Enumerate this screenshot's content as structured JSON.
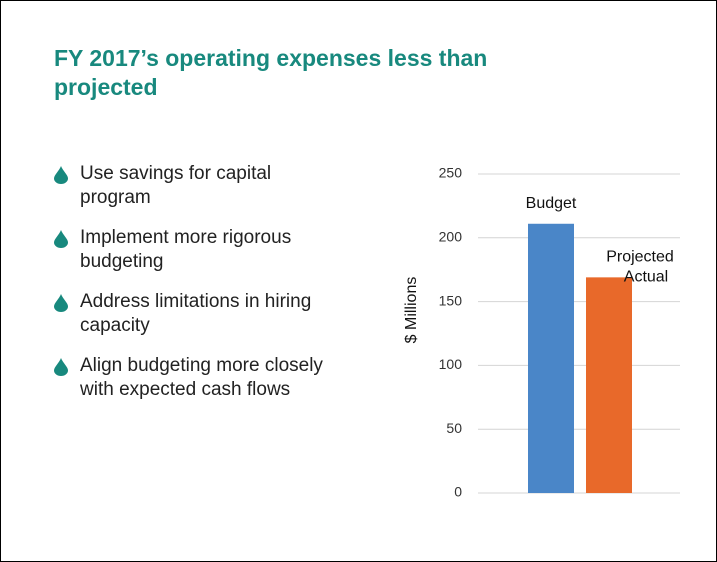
{
  "title": "FY 2017’s operating expenses less than projected",
  "bullets": [
    "Use savings for capital program",
    "Implement more rigorous budgeting",
    "Address limitations in hiring capacity",
    "Align budgeting more closely with expected cash flows"
  ],
  "chart_data": {
    "type": "bar",
    "y_label": "$ Millions",
    "categories": [
      "Budget",
      "Projected Actual"
    ],
    "values": [
      211,
      169
    ],
    "colors": [
      "#4a86c8",
      "#e8692a"
    ],
    "ylim": [
      0,
      250
    ],
    "yticks": [
      0,
      50,
      100,
      150,
      200,
      250
    ],
    "grid": true
  }
}
